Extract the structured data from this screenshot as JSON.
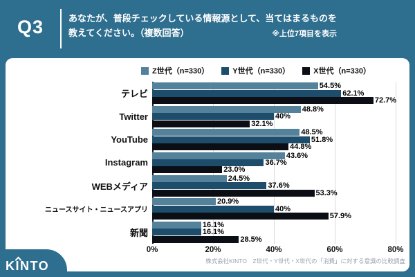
{
  "header": {
    "question_number": "Q3",
    "title_line1": "あなたが、普段チェックしている情報源として、当てはまるものを",
    "title_line2": "教えてください。（複数回答）",
    "note": "※上位7項目を表示"
  },
  "chart_data": {
    "type": "bar",
    "orientation": "horizontal",
    "grouped": true,
    "categories": [
      "テレビ",
      "Twitter",
      "YouTube",
      "Instagram",
      "WEBメディア",
      "ニュースサイト・ニュースアプリ",
      "新聞"
    ],
    "series": [
      {
        "name": "Z世代（n=330）",
        "color": "#54829B",
        "values": [
          54.5,
          48.8,
          48.5,
          43.6,
          24.5,
          20.9,
          16.1
        ],
        "labels": [
          "54.5%",
          "48.8%",
          "48.5%",
          "43.6%",
          "24.5%",
          "20.9%",
          "16.1%"
        ]
      },
      {
        "name": "Y世代（n=330）",
        "color": "#1E4D6B",
        "values": [
          62.1,
          40,
          51.8,
          36.7,
          37.6,
          40,
          16.1
        ],
        "labels": [
          "62.1%",
          "40%",
          "51.8%",
          "36.7%",
          "37.6%",
          "40%",
          "16.1%"
        ]
      },
      {
        "name": "X世代（n=330）",
        "color": "#0B0F15",
        "values": [
          72.7,
          32.1,
          44.8,
          23.0,
          53.3,
          57.9,
          28.5
        ],
        "labels": [
          "72.7%",
          "32.1%",
          "44.8%",
          "23.0%",
          "53.3%",
          "57.9%",
          "28.5%"
        ]
      }
    ],
    "xlim": [
      0,
      80
    ],
    "xticks": [
      "0%",
      "20%",
      "40%",
      "60%",
      "80%"
    ],
    "grid": true,
    "legend_position": "top"
  },
  "footer": {
    "source": "株式会社KINTO　Z世代・Y世代・X世代の「消費」に対する意識の比較調査"
  },
  "logo": {
    "k": "K",
    "i": "I",
    "nto": "NTO"
  },
  "colors": {
    "background": "#2E6E8E",
    "panel": "#FFFFFF",
    "grid": "#D9D9D9",
    "axis": "#1A1A1A",
    "source_text": "#97A2AB"
  }
}
